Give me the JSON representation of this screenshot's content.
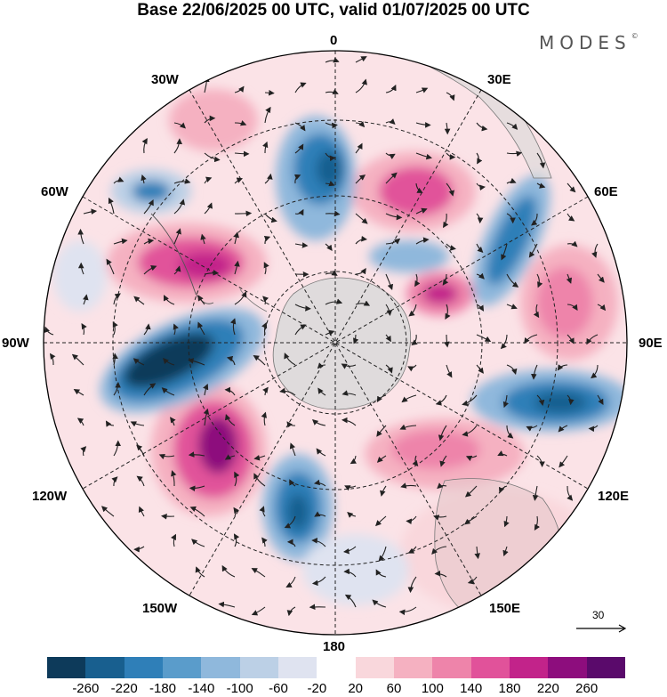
{
  "title": "Base 22/06/2025 00 UTC, valid 01/07/2025 00 UTC",
  "brand": "MODES",
  "brand_mark": "©",
  "longitude_labels": {
    "top": "0",
    "top_left": "30W",
    "top_right": "30E",
    "left_upper": "60W",
    "right_upper": "60E",
    "left": "90W",
    "right": "90E",
    "left_lower": "120W",
    "right_lower": "120E",
    "bottom_left": "150W",
    "bottom_right": "150E",
    "bottom": "180"
  },
  "reference_vector": {
    "label": "30"
  },
  "colorbar": {
    "ticks": [
      "-260",
      "-220",
      "-180",
      "-140",
      "-100",
      "-60",
      "-20",
      "20",
      "60",
      "100",
      "140",
      "180",
      "220",
      "260"
    ],
    "colors": [
      "#0d3a5a",
      "#185f8f",
      "#2f7fb8",
      "#5a9ccb",
      "#8fb8dc",
      "#bcd0e6",
      "#dfe3f0",
      "#ffffff",
      "#f9d7dc",
      "#f5b1c1",
      "#ee84aa",
      "#e1529a",
      "#c2238a",
      "#8d0d7d",
      "#5a0a6b"
    ]
  }
}
